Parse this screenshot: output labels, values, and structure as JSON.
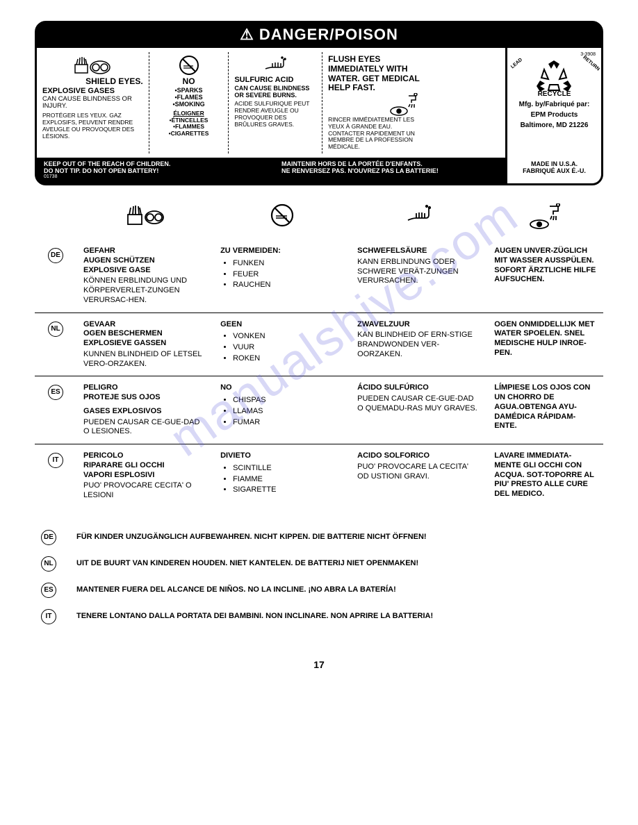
{
  "danger": {
    "header": "⚠ DANGER/POISON",
    "col1": {
      "title1": "SHIELD EYES.",
      "title2": "EXPLOSIVE GASES",
      "body_en": "CAN CAUSE BLINDNESS OR INJURY.",
      "body_fr": "PROTÉGER LES YEUX. GAZ EXPLOSIFS, PEUVENT RENDRE AVEUGLE OU PROVOQUER DES LÉSIONS."
    },
    "col2": {
      "title": "NO",
      "items_en": "•SPARKS\n•FLAMES\n•SMOKING",
      "title_fr": "ÉLOIGNER",
      "items_fr": "•ÉTINCELLES\n•FLAMMES\n•CIGARETTES"
    },
    "col3": {
      "title": "SULFURIC ACID",
      "body_en": "CAN CAUSE BLINDNESS OR SEVERE BURNS.",
      "body_fr": "ACIDE SULFURIQUE PEUT RENDRE AVEUGLE OU PROVOQUER DES BRÛLURES GRAVES."
    },
    "col4": {
      "title": "FLUSH EYES IMMEDIATELY WITH WATER. GET MEDICAL HELP FAST.",
      "body_fr": "RINCER IMMÉDIATEMENT LES YEUX À GRANDE EAU. CONTACTER RAPIDEMENT UN MEMBRE DE LA PROFESSION MÉDICALE."
    },
    "side": {
      "code": "3-3908",
      "recycle": "RECYCLE",
      "lead": "LEAD",
      "return": "RETURN",
      "mfg1": "Mfg. by/Fabriqué par:",
      "mfg2": "EPM Products",
      "mfg3": "Baltimore, MD 21226",
      "made1": "MADE IN U.S.A.",
      "made2": "FABRIQUÉ AUX É.-U."
    },
    "footer": {
      "left1": "KEEP OUT OF THE REACH OF CHILDREN.",
      "left2": "DO NOT TIP. DO NOT OPEN BATTERY!",
      "code": "01738",
      "right1": "MAINTENIR HORS DE LA PORTÉE D'ENFANTS.",
      "right2": "NE RENVERSEZ PAS. N'OUVREZ PAS LA BATTERIE!"
    }
  },
  "langs": [
    {
      "code": "DE",
      "c1_h": "GEFAHR\nAUGEN SCHÜTZEN\nEXPLOSIVE GASE",
      "c1_b": "KÖNNEN ERBLINDUNG UND KÖRPERVERLET-ZUNGEN VERURSAC-HEN.",
      "c2_h": "ZU VERMEIDEN:",
      "c2_items": [
        "FUNKEN",
        "FEUER",
        "RAUCHEN"
      ],
      "c3_h": "SCHWEFELSÄURE",
      "c3_b": "KANN ERBLINDUNG ODER SCHWERE VERÄT-ZUNGEN VERURSACHEN.",
      "c4_h": "AUGEN UNVER-ZÜGLICH MIT WASSER AUSSPÜLEN. SOFORT ÄRZTLICHE HILFE AUFSUCHEN."
    },
    {
      "code": "NL",
      "c1_h": "GEVAAR\nOGEN BESCHERMEN\nEXPLOSIEVE GASSEN",
      "c1_b": "KUNNEN BLINDHEID OF LETSEL VERO-ORZAKEN.",
      "c2_h": "GEEN",
      "c2_items": [
        "VONKEN",
        "VUUR",
        "ROKEN"
      ],
      "c3_h": "ZWAVELZUUR",
      "c3_b": "KAN BLINDHEID OF ERN-STIGE BRANDWONDEN VER-OORZAKEN.",
      "c4_h": "OGEN ONMIDDELLIJK MET WATER SPOELEN. SNEL MEDISCHE HULP INROE-PEN."
    },
    {
      "code": "ES",
      "c1_h": "PELIGRO\nPROTEJE SUS OJOS",
      "c1_h2": "GASES EXPLOSIVOS",
      "c1_b": "PUEDEN CAUSAR CE-GUE-DAD O LESIONES.",
      "c2_h": "NO",
      "c2_items": [
        "CHISPAS",
        "LLAMAS",
        "FUMAR"
      ],
      "c3_h": "ÁCIDO SULFÚRICO",
      "c3_b": "PUEDEN CAUSAR CE-GUE-DAD O QUEMADU-RAS MUY GRAVES.",
      "c4_h": "LÍMPIESE LOS OJOS CON UN CHORRO DE AGUA.OBTENGA AYU-DAMÉDICA RÁPIDAM-ENTE."
    },
    {
      "code": "IT",
      "c1_h": "PERICOLO\nRIPARARE GLI OCCHI\nVAPORI ESPLOSIVI",
      "c1_b": "PUO' PROVOCARE CECITA' O LESIONI",
      "c2_h": "DIVIETO",
      "c2_items": [
        "SCINTILLE",
        "FIAMME",
        "SIGARETTE"
      ],
      "c3_h": "ACIDO SOLFORICO",
      "c3_b": "PUO' PROVOCARE LA CECITA' OD USTIONI GRAVI.",
      "c4_h": "LAVARE IMMEDIATA-MENTE GLI OCCHI CON ACQUA. SOT-TOPORRE AL PIU' PRESTO ALLE CURE DEL MEDICO."
    }
  ],
  "bottom": [
    {
      "code": "DE",
      "text": "FÜR KINDER UNZUGÄNGLICH AUFBEWAHREN. NICHT KIPPEN. DIE BATTERIE NICHT ÖFFNEN!"
    },
    {
      "code": "NL",
      "text": "UIT DE BUURT VAN KINDEREN HOUDEN. NIET KANTELEN. DE BATTERIJ NIET OPENMAKEN!"
    },
    {
      "code": "ES",
      "text": "MANTENER FUERA DEL ALCANCE DE NIÑOS. NO LA INCLINE. ¡NO ABRA LA BATERÍA!"
    },
    {
      "code": "IT",
      "text": "TENERE LONTANO DALLA PORTATA DEI BAMBINI. NON INCLINARE. NON APRIRE LA BATTERIA!"
    }
  ],
  "page": "17",
  "watermark": "manualshive.com",
  "colors": {
    "black": "#000000",
    "white": "#ffffff",
    "watermark": "rgba(100,100,220,0.25)"
  }
}
